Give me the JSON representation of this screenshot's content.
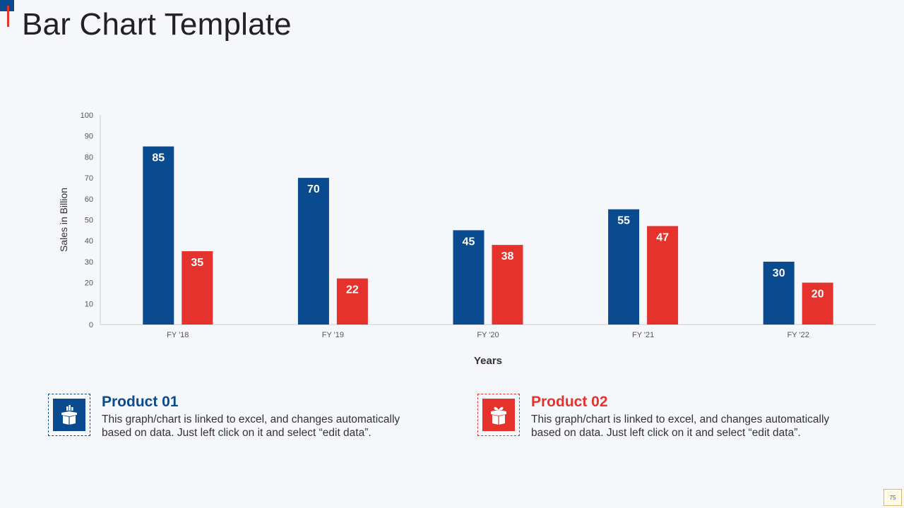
{
  "slide": {
    "title": "Bar Chart Template",
    "page_number": "75"
  },
  "colors": {
    "product_01": "#0a4a8f",
    "product_02": "#e5322d",
    "axis": "#cccccc"
  },
  "chart_data": {
    "type": "bar",
    "title": "",
    "xlabel": "Years",
    "ylabel": "Sales in Billion",
    "ylim": [
      0,
      100
    ],
    "yticks": [
      0,
      10,
      20,
      30,
      40,
      50,
      60,
      70,
      80,
      90,
      100
    ],
    "categories": [
      "FY '18",
      "FY '19",
      "FY '20",
      "FY '21",
      "FY '22"
    ],
    "series": [
      {
        "name": "Product 01",
        "color": "#0a4a8f",
        "values": [
          85,
          70,
          45,
          55,
          30
        ]
      },
      {
        "name": "Product 02",
        "color": "#e5322d",
        "values": [
          35,
          22,
          38,
          47,
          20
        ]
      }
    ],
    "grid": false,
    "legend": "none"
  },
  "legend_cards": [
    {
      "title": "Product 01",
      "description": "This graph/chart is linked to excel, and changes automatically based on data. Just left click on it and select “edit data”.",
      "icon": "box-chart-icon"
    },
    {
      "title": "Product 02",
      "description": "This graph/chart is linked to excel, and changes automatically based on data. Just left click on it and select “edit data”.",
      "icon": "gift-box-icon"
    }
  ]
}
